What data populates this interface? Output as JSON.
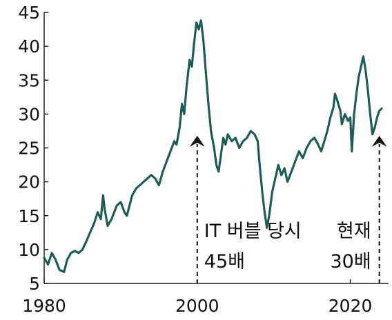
{
  "chart_data": {
    "type": "line",
    "title": "",
    "xlabel": "",
    "ylabel": "",
    "xlim": [
      1980,
      2025
    ],
    "ylim": [
      5,
      45
    ],
    "x_ticks": [
      1980,
      2000,
      2020
    ],
    "y_ticks": [
      5,
      10,
      15,
      20,
      25,
      30,
      35,
      40,
      45
    ],
    "grid": false,
    "legend": "none",
    "line_color": "#1f5c55",
    "series": [
      {
        "x": [
          1980.0,
          1980.5,
          1981.0,
          1981.5,
          1982.0,
          1982.6,
          1983.0,
          1983.5,
          1984.0,
          1984.5,
          1985.0,
          1985.5,
          1986.0,
          1986.5,
          1987.0,
          1987.4,
          1987.7,
          1987.9,
          1988.3,
          1988.8,
          1989.5,
          1990.0,
          1990.5,
          1990.8,
          1991.5,
          1992.0,
          1992.5,
          1993.0,
          1993.5,
          1994.0,
          1994.5,
          1995.0,
          1995.5,
          1996.0,
          1996.5,
          1997.0,
          1997.3,
          1997.7,
          1998.0,
          1998.3,
          1998.6,
          1999.0,
          1999.3,
          1999.6,
          1999.9,
          2000.2,
          2000.5,
          2000.8,
          2001.1,
          2001.5,
          2001.8,
          2002.2,
          2002.5,
          2002.8,
          2003.1,
          2003.4,
          2003.7,
          2004.0,
          2004.5,
          2005.0,
          2005.5,
          2006.0,
          2006.5,
          2007.0,
          2007.5,
          2007.9,
          2008.2,
          2008.5,
          2008.8,
          2009.1,
          2009.4,
          2009.8,
          2010.2,
          2010.6,
          2011.0,
          2011.4,
          2011.8,
          2012.3,
          2012.8,
          2013.3,
          2013.8,
          2014.3,
          2014.8,
          2015.3,
          2015.8,
          2016.2,
          2016.6,
          2017.0,
          2017.4,
          2017.8,
          2018.0,
          2018.3,
          2018.7,
          2018.9,
          2019.3,
          2019.7,
          2020.0,
          2020.2,
          2020.5,
          2020.8,
          2021.1,
          2021.4,
          2021.7,
          2022.0,
          2022.3,
          2022.6,
          2022.9,
          2023.2,
          2023.5,
          2023.8,
          2024.1
        ],
        "y": [
          8.8,
          7.8,
          9.5,
          8.5,
          7.0,
          6.7,
          8.5,
          9.5,
          9.8,
          9.5,
          10.0,
          11.2,
          12.5,
          13.8,
          15.5,
          14.5,
          18.0,
          16.0,
          13.5,
          14.5,
          16.5,
          17.0,
          15.5,
          15.0,
          18.0,
          19.0,
          19.5,
          20.0,
          20.5,
          21.0,
          20.5,
          19.5,
          21.5,
          23.0,
          24.5,
          26.0,
          25.5,
          28.0,
          31.5,
          30.0,
          34.0,
          38.0,
          37.0,
          40.5,
          43.5,
          42.5,
          43.8,
          41.0,
          36.5,
          31.0,
          27.5,
          25.0,
          22.5,
          21.5,
          24.0,
          26.5,
          25.5,
          27.0,
          26.0,
          26.5,
          25.0,
          26.0,
          26.5,
          27.5,
          27.0,
          26.0,
          22.0,
          18.5,
          15.5,
          13.2,
          15.0,
          18.5,
          20.5,
          22.5,
          21.0,
          22.0,
          20.0,
          21.5,
          23.0,
          24.5,
          23.5,
          25.0,
          26.0,
          26.5,
          25.5,
          24.5,
          26.0,
          27.5,
          29.5,
          31.0,
          33.0,
          32.0,
          30.5,
          28.5,
          30.0,
          29.0,
          29.5,
          24.5,
          30.0,
          33.0,
          35.5,
          37.0,
          38.5,
          36.5,
          33.5,
          30.0,
          27.0,
          28.0,
          29.5,
          30.5,
          30.8
        ]
      }
    ],
    "annotations": [
      {
        "x": 2000,
        "y": 26.8,
        "line1": "IT 버블 당시",
        "line2": "45배"
      },
      {
        "x": 2023.8,
        "y": 26.8,
        "line1": "현재",
        "line2": "30배"
      }
    ]
  }
}
